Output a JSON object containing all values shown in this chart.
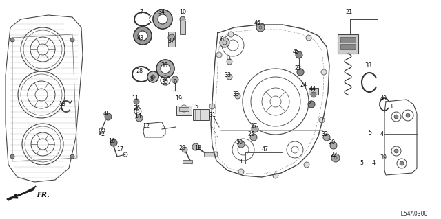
{
  "diagram_code": "TL54A0300",
  "background_color": "#ffffff",
  "figsize": [
    6.4,
    3.19
  ],
  "dpi": 100,
  "label_color": "#111111",
  "line_color": "#333333",
  "part_label_fs": 5.8,
  "labels": [
    [
      "7",
      [
        218,
        22
      ]
    ],
    [
      "34",
      [
        238,
        22
      ]
    ],
    [
      "10",
      [
        262,
        28
      ]
    ],
    [
      "43",
      [
        205,
        52
      ]
    ],
    [
      "37",
      [
        248,
        58
      ]
    ],
    [
      "28",
      [
        205,
        108
      ]
    ],
    [
      "8",
      [
        222,
        112
      ]
    ],
    [
      "36",
      [
        240,
        100
      ]
    ],
    [
      "35",
      [
        240,
        118
      ]
    ],
    [
      "9",
      [
        254,
        118
      ]
    ],
    [
      "6",
      [
        326,
        62
      ]
    ],
    [
      "46",
      [
        378,
        38
      ]
    ],
    [
      "33",
      [
        335,
        88
      ]
    ],
    [
      "33",
      [
        333,
        112
      ]
    ],
    [
      "33",
      [
        345,
        140
      ]
    ],
    [
      "45",
      [
        434,
        78
      ]
    ],
    [
      "23",
      [
        436,
        102
      ]
    ],
    [
      "44",
      [
        455,
        132
      ]
    ],
    [
      "2",
      [
        453,
        152
      ]
    ],
    [
      "24",
      [
        440,
        130
      ]
    ],
    [
      "13",
      [
        96,
        154
      ]
    ],
    [
      "41",
      [
        156,
        168
      ]
    ],
    [
      "42",
      [
        152,
        192
      ]
    ],
    [
      "11",
      [
        198,
        148
      ]
    ],
    [
      "26",
      [
        200,
        162
      ]
    ],
    [
      "14",
      [
        202,
        172
      ]
    ],
    [
      "12",
      [
        216,
        186
      ]
    ],
    [
      "16",
      [
        164,
        208
      ]
    ],
    [
      "17",
      [
        176,
        216
      ]
    ],
    [
      "19",
      [
        262,
        148
      ]
    ],
    [
      "15",
      [
        285,
        160
      ]
    ],
    [
      "29",
      [
        270,
        220
      ]
    ],
    [
      "18",
      [
        290,
        218
      ]
    ],
    [
      "31",
      [
        312,
        170
      ]
    ],
    [
      "21",
      [
        510,
        22
      ]
    ],
    [
      "38",
      [
        536,
        100
      ]
    ],
    [
      "40",
      [
        560,
        148
      ]
    ],
    [
      "3",
      [
        570,
        158
      ]
    ],
    [
      "4",
      [
        556,
        198
      ]
    ],
    [
      "5",
      [
        540,
        198
      ]
    ],
    [
      "39",
      [
        558,
        230
      ]
    ],
    [
      "4",
      [
        544,
        240
      ]
    ],
    [
      "5",
      [
        528,
        240
      ]
    ],
    [
      "20",
      [
        484,
        210
      ]
    ],
    [
      "22",
      [
        486,
        228
      ]
    ],
    [
      "32",
      [
        474,
        198
      ]
    ],
    [
      "25",
      [
        368,
        200
      ]
    ],
    [
      "27",
      [
        370,
        188
      ]
    ],
    [
      "30",
      [
        350,
        210
      ]
    ],
    [
      "47",
      [
        388,
        222
      ]
    ],
    [
      "1",
      [
        352,
        238
      ]
    ],
    [
      "43",
      [
        205,
        52
      ]
    ]
  ]
}
